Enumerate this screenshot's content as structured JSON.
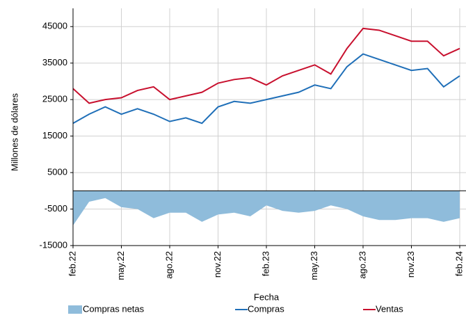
{
  "chart_data": {
    "type": "line",
    "x_label": "Fecha",
    "y_label": "Millones de dólares",
    "categories": [
      "feb.22",
      null,
      null,
      "may.22",
      null,
      null,
      "ago.22",
      null,
      null,
      "nov.22",
      null,
      null,
      "feb.23",
      null,
      null,
      "may.23",
      null,
      null,
      "ago.23",
      null,
      null,
      "nov.23",
      null,
      null,
      "feb.24"
    ],
    "ylim": [
      -15000,
      50000
    ],
    "yticks": [
      45000,
      35000,
      25000,
      15000,
      5000,
      -5000,
      -15000
    ],
    "grid": true,
    "legend": "bottom",
    "series": [
      {
        "name": "Compras netas",
        "kind": "area",
        "color": "#8fbcdb",
        "values": [
          -9500,
          -3000,
          -2000,
          -4500,
          -5000,
          -7500,
          -6000,
          -6000,
          -8500,
          -6500,
          -6000,
          -7000,
          -4000,
          -5500,
          -6000,
          -5500,
          -4000,
          -5000,
          -7000,
          -8000,
          -8000,
          -7500,
          -7500,
          -8500,
          -7500
        ]
      },
      {
        "name": "Compras",
        "kind": "line",
        "color": "#1f6fb8",
        "values": [
          18500,
          21000,
          23000,
          21000,
          22500,
          21000,
          19000,
          20000,
          18500,
          23000,
          24500,
          24000,
          25000,
          26000,
          27000,
          29000,
          28000,
          34000,
          37500,
          36000,
          34500,
          33000,
          33500,
          28500,
          31500
        ]
      },
      {
        "name": "Ventas",
        "kind": "line",
        "color": "#c8102e",
        "values": [
          28000,
          24000,
          25000,
          25500,
          27500,
          28500,
          25000,
          26000,
          27000,
          29500,
          30500,
          31000,
          29000,
          31500,
          33000,
          34500,
          32000,
          39000,
          44500,
          44000,
          42500,
          41000,
          41000,
          37000,
          39000
        ]
      }
    ]
  }
}
